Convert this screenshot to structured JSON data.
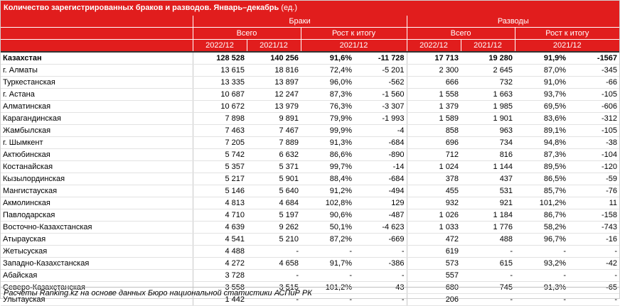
{
  "title": "Количество зарегистрированных браков и разводов. Январь–декабрь",
  "unit": "(ед.)",
  "headers": {
    "marriages": "Браки",
    "divorces": "Разводы",
    "total": "Всего",
    "growth": "Рост к итогу",
    "y2022": "2022/12",
    "y2021": "2021/12"
  },
  "rows": [
    {
      "region": "Казахстан",
      "m22": "128 528",
      "m21": "140 256",
      "mpct": "91,6%",
      "mdiff": "-11 728",
      "d22": "17 713",
      "d21": "19 280",
      "dpct": "91,9%",
      "ddiff": "-1567"
    },
    {
      "region": "г. Алматы",
      "m22": "13 615",
      "m21": "18 816",
      "mpct": "72,4%",
      "mdiff": "-5 201",
      "d22": "2 300",
      "d21": "2 645",
      "dpct": "87,0%",
      "ddiff": "-345"
    },
    {
      "region": "Туркестанская",
      "m22": "13 335",
      "m21": "13 897",
      "mpct": "96,0%",
      "mdiff": "-562",
      "d22": "666",
      "d21": "732",
      "dpct": "91,0%",
      "ddiff": "-66"
    },
    {
      "region": "г. Астана",
      "m22": "10 687",
      "m21": "12 247",
      "mpct": "87,3%",
      "mdiff": "-1 560",
      "d22": "1 558",
      "d21": "1 663",
      "dpct": "93,7%",
      "ddiff": "-105"
    },
    {
      "region": "Алматинская",
      "m22": "10 672",
      "m21": "13 979",
      "mpct": "76,3%",
      "mdiff": "-3 307",
      "d22": "1 379",
      "d21": "1 985",
      "dpct": "69,5%",
      "ddiff": "-606"
    },
    {
      "region": "Карагандинская",
      "m22": "7 898",
      "m21": "9 891",
      "mpct": "79,9%",
      "mdiff": "-1 993",
      "d22": "1 589",
      "d21": "1 901",
      "dpct": "83,6%",
      "ddiff": "-312"
    },
    {
      "region": "Жамбылская",
      "m22": "7 463",
      "m21": "7 467",
      "mpct": "99,9%",
      "mdiff": "-4",
      "d22": "858",
      "d21": "963",
      "dpct": "89,1%",
      "ddiff": "-105"
    },
    {
      "region": "г. Шымкент",
      "m22": "7 205",
      "m21": "7 889",
      "mpct": "91,3%",
      "mdiff": "-684",
      "d22": "696",
      "d21": "734",
      "dpct": "94,8%",
      "ddiff": "-38"
    },
    {
      "region": "Актюбинская",
      "m22": "5 742",
      "m21": "6 632",
      "mpct": "86,6%",
      "mdiff": "-890",
      "d22": "712",
      "d21": "816",
      "dpct": "87,3%",
      "ddiff": "-104"
    },
    {
      "region": "Костанайская",
      "m22": "5 357",
      "m21": "5 371",
      "mpct": "99,7%",
      "mdiff": "-14",
      "d22": "1 024",
      "d21": "1 144",
      "dpct": "89,5%",
      "ddiff": "-120"
    },
    {
      "region": "Кызылординская",
      "m22": "5 217",
      "m21": "5 901",
      "mpct": "88,4%",
      "mdiff": "-684",
      "d22": "378",
      "d21": "437",
      "dpct": "86,5%",
      "ddiff": "-59"
    },
    {
      "region": "Мангистауская",
      "m22": "5 146",
      "m21": "5 640",
      "mpct": "91,2%",
      "mdiff": "-494",
      "d22": "455",
      "d21": "531",
      "dpct": "85,7%",
      "ddiff": "-76"
    },
    {
      "region": "Акмолинская",
      "m22": "4 813",
      "m21": "4 684",
      "mpct": "102,8%",
      "mdiff": "129",
      "d22": "932",
      "d21": "921",
      "dpct": "101,2%",
      "ddiff": "11"
    },
    {
      "region": "Павлодарская",
      "m22": "4 710",
      "m21": "5 197",
      "mpct": "90,6%",
      "mdiff": "-487",
      "d22": "1 026",
      "d21": "1 184",
      "dpct": "86,7%",
      "ddiff": "-158"
    },
    {
      "region": "Восточно-Казахстанская",
      "m22": "4 639",
      "m21": "9 262",
      "mpct": "50,1%",
      "mdiff": "-4 623",
      "d22": "1 033",
      "d21": "1 776",
      "dpct": "58,2%",
      "ddiff": "-743"
    },
    {
      "region": "Атырауская",
      "m22": "4 541",
      "m21": "5 210",
      "mpct": "87,2%",
      "mdiff": "-669",
      "d22": "472",
      "d21": "488",
      "dpct": "96,7%",
      "ddiff": "-16"
    },
    {
      "region": "Жетысуская",
      "m22": "4 488",
      "m21": "-",
      "mpct": "-",
      "mdiff": "-",
      "d22": "619",
      "d21": "-",
      "dpct": "-",
      "ddiff": "-"
    },
    {
      "region": "Западно-Казахстанская",
      "m22": "4 272",
      "m21": "4 658",
      "mpct": "91,7%",
      "mdiff": "-386",
      "d22": "573",
      "d21": "615",
      "dpct": "93,2%",
      "ddiff": "-42"
    },
    {
      "region": "Абайская",
      "m22": "3 728",
      "m21": "-",
      "mpct": "-",
      "mdiff": "-",
      "d22": "557",
      "d21": "-",
      "dpct": "-",
      "ddiff": "-"
    },
    {
      "region": "Северо-Казахстанская",
      "m22": "3 558",
      "m21": "3 515",
      "mpct": "101,2%",
      "mdiff": "43",
      "d22": "680",
      "d21": "745",
      "dpct": "91,3%",
      "ddiff": "-65"
    },
    {
      "region": "Улытауская",
      "m22": "1 442",
      "m21": "-",
      "mpct": "-",
      "mdiff": "-",
      "d22": "206",
      "d21": "-",
      "dpct": "-",
      "ddiff": "-"
    }
  ],
  "footer": "Расчёты Ranking.kz на основе данных Бюро национальной статистики АСПиР РК",
  "colors": {
    "header_bg": "#e11d1d",
    "header_text": "#ffffff"
  }
}
